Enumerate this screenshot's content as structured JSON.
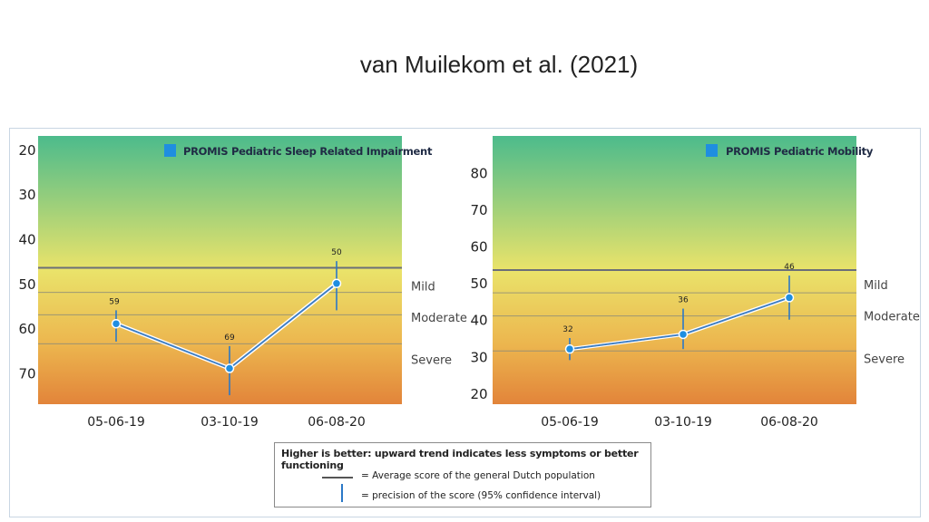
{
  "slide_title": "van Muilekom et al. (2021)",
  "colors": {
    "band_top": "#4cbb8c",
    "band_mid": "#eae36a",
    "band_bottom": "#e2843a",
    "series_line": "#3a7fc4",
    "point": "#1f8ee0",
    "ci": "#2b78c7",
    "reference_line": "#6b6f78"
  },
  "legend": {
    "heading": "Higher is better: upward trend indicates less symptoms or better functioning",
    "average_text": "= Average score of the general Dutch population",
    "precision_text": "= precision of the score (95% confidence interval)"
  },
  "chart_data": [
    {
      "type": "line",
      "title": "PROMIS Pediatric Sleep Related Impairment",
      "x": [
        "05-06-19",
        "03-10-19",
        "06-08-20"
      ],
      "series": [
        {
          "name": "PROMIS Pediatric Sleep Related Impairment",
          "values": [
            59,
            69,
            50
          ],
          "ci": [
            [
              56,
              63
            ],
            [
              64,
              75
            ],
            [
              45,
              56
            ]
          ]
        }
      ],
      "point_labels": [
        "59",
        "69",
        "50"
      ],
      "y_axis": {
        "reversed": true,
        "ylim": [
          17,
          77
        ]
      },
      "y_ticks": [
        20,
        30,
        40,
        50,
        60,
        70
      ],
      "reference_line": 46.5,
      "severity_lines": [
        {
          "label": "Mild",
          "value": 52
        },
        {
          "label": "Moderate",
          "value": 57
        },
        {
          "label": "Severe",
          "value": 63.5
        }
      ],
      "severity_labels": [
        {
          "label": "Mild",
          "value": 50.5
        },
        {
          "label": "Moderate",
          "value": 57.5
        },
        {
          "label": "Severe",
          "value": 67
        }
      ],
      "grid": false
    },
    {
      "type": "line",
      "title": "PROMIS Pediatric Mobility",
      "x": [
        "05-06-19",
        "03-10-19",
        "06-08-20"
      ],
      "series": [
        {
          "name": "PROMIS Pediatric Mobility",
          "values": [
            32,
            36,
            46
          ],
          "ci": [
            [
              29,
              35
            ],
            [
              32,
              43
            ],
            [
              40,
              52
            ]
          ]
        }
      ],
      "point_labels": [
        "32",
        "36",
        "46"
      ],
      "y_axis": {
        "reversed": false,
        "ylim": [
          17,
          90
        ]
      },
      "y_ticks": [
        20,
        30,
        40,
        50,
        60,
        70,
        80
      ],
      "reference_line": 53.5,
      "severity_lines": [
        {
          "label": "Mild",
          "value": 47.3
        },
        {
          "label": "Moderate",
          "value": 41
        },
        {
          "label": "Severe",
          "value": 31.5
        }
      ],
      "severity_labels": [
        {
          "label": "Mild",
          "value": 49.5
        },
        {
          "label": "Moderate",
          "value": 41
        },
        {
          "label": "Severe",
          "value": 29.5
        }
      ],
      "grid": false
    }
  ]
}
